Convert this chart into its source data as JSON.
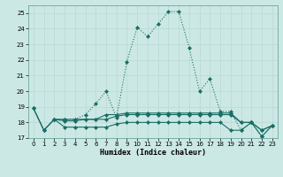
{
  "xlabel": "Humidex (Indice chaleur)",
  "background_color": "#cce8e5",
  "grid_color": "#b8d8d5",
  "line_color": "#1a6e65",
  "xlim": [
    -0.5,
    23.5
  ],
  "ylim": [
    17,
    25.5
  ],
  "yticks": [
    17,
    18,
    19,
    20,
    21,
    22,
    23,
    24,
    25
  ],
  "xticks": [
    0,
    1,
    2,
    3,
    4,
    5,
    6,
    7,
    8,
    9,
    10,
    11,
    12,
    13,
    14,
    15,
    16,
    17,
    18,
    19,
    20,
    21,
    22,
    23
  ],
  "series": [
    {
      "x": [
        0,
        1,
        2,
        3,
        4,
        5,
        6,
        7,
        8,
        9,
        10,
        11,
        12,
        13,
        14,
        15,
        16,
        17,
        18,
        19,
        20,
        21,
        22,
        23
      ],
      "y": [
        18.9,
        17.5,
        18.2,
        18.2,
        18.2,
        18.5,
        19.2,
        20.0,
        18.3,
        21.9,
        24.1,
        23.5,
        24.3,
        25.1,
        25.1,
        22.8,
        20.0,
        20.8,
        18.7,
        18.7,
        17.5,
        18.0,
        17.1,
        17.8
      ],
      "style": "dotted",
      "marker": "D",
      "markersize": 2.0
    },
    {
      "x": [
        0,
        1,
        2,
        3,
        4,
        5,
        6,
        7,
        8,
        9,
        10,
        11,
        12,
        13,
        14,
        15,
        16,
        17,
        18,
        19,
        20,
        21,
        22,
        23
      ],
      "y": [
        18.9,
        17.5,
        18.2,
        18.1,
        18.1,
        18.2,
        18.2,
        18.2,
        18.4,
        18.5,
        18.5,
        18.5,
        18.5,
        18.5,
        18.5,
        18.5,
        18.5,
        18.5,
        18.5,
        18.5,
        18.0,
        18.0,
        17.5,
        17.8
      ],
      "style": "solid",
      "marker": "D",
      "markersize": 2.0
    },
    {
      "x": [
        0,
        1,
        2,
        3,
        4,
        5,
        6,
        7,
        8,
        9,
        10,
        11,
        12,
        13,
        14,
        15,
        16,
        17,
        18,
        19,
        20,
        21,
        22,
        23
      ],
      "y": [
        18.9,
        17.5,
        18.2,
        17.7,
        17.7,
        17.7,
        17.7,
        17.7,
        17.9,
        18.0,
        18.0,
        18.0,
        18.0,
        18.0,
        18.0,
        18.0,
        18.0,
        18.0,
        18.0,
        17.5,
        17.5,
        18.0,
        17.1,
        17.8
      ],
      "style": "solid",
      "marker": "D",
      "markersize": 2.0
    },
    {
      "x": [
        2,
        3,
        4,
        5,
        6,
        7,
        8,
        9,
        10,
        11,
        12,
        13,
        14,
        15,
        16,
        17,
        18,
        19,
        20,
        21,
        22,
        23
      ],
      "y": [
        18.2,
        18.2,
        18.2,
        18.2,
        18.2,
        18.5,
        18.5,
        18.6,
        18.6,
        18.6,
        18.6,
        18.6,
        18.6,
        18.6,
        18.6,
        18.6,
        18.6,
        18.6,
        18.0,
        18.0,
        17.5,
        17.8
      ],
      "style": "solid",
      "marker": "D",
      "markersize": 2.0
    }
  ]
}
